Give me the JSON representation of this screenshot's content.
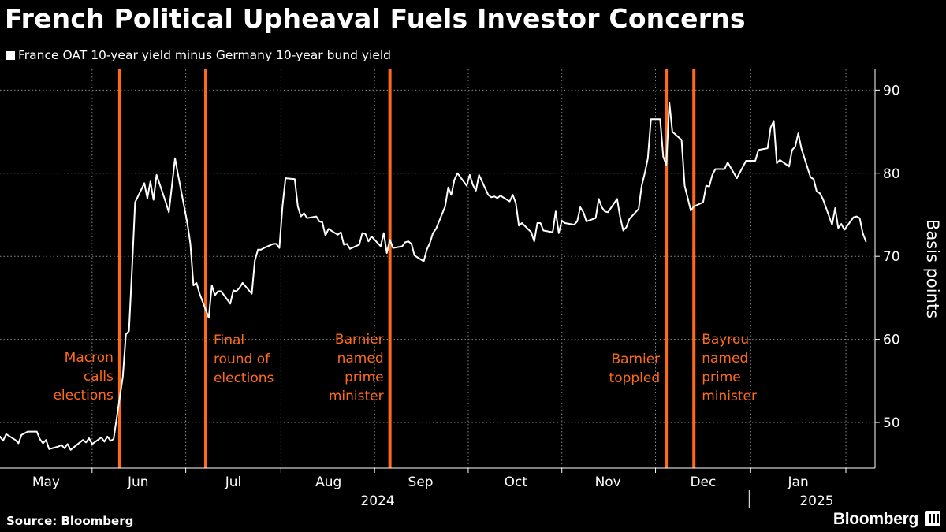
{
  "chart_data": {
    "type": "line",
    "title": "French Political Upheaval Fuels Investor Concerns",
    "series": [
      {
        "name": "France OAT 10-year yield minus Germany 10-year bund yield",
        "color": "#ffffff",
        "points": [
          [
            "2024-05-01",
            48.3
          ],
          [
            "2024-05-02",
            47.8
          ],
          [
            "2024-05-03",
            48.6
          ],
          [
            "2024-05-06",
            47.9
          ],
          [
            "2024-05-07",
            47.5
          ],
          [
            "2024-05-08",
            48.5
          ],
          [
            "2024-05-09",
            48.7
          ],
          [
            "2024-05-10",
            48.9
          ],
          [
            "2024-05-13",
            48.9
          ],
          [
            "2024-05-14",
            48.0
          ],
          [
            "2024-05-15",
            47.5
          ],
          [
            "2024-05-16",
            47.9
          ],
          [
            "2024-05-17",
            46.8
          ],
          [
            "2024-05-20",
            47.1
          ],
          [
            "2024-05-21",
            47.3
          ],
          [
            "2024-05-22",
            46.9
          ],
          [
            "2024-05-23",
            47.4
          ],
          [
            "2024-05-24",
            46.7
          ],
          [
            "2024-05-27",
            47.6
          ],
          [
            "2024-05-28",
            47.9
          ],
          [
            "2024-05-29",
            47.6
          ],
          [
            "2024-05-30",
            48.1
          ],
          [
            "2024-05-31",
            47.4
          ],
          [
            "2024-06-03",
            48.2
          ],
          [
            "2024-06-04",
            47.7
          ],
          [
            "2024-06-05",
            48.3
          ],
          [
            "2024-06-06",
            47.8
          ],
          [
            "2024-06-07",
            48.0
          ],
          [
            "2024-06-10",
            55.5
          ],
          [
            "2024-06-11",
            60.6
          ],
          [
            "2024-06-12",
            61.0
          ],
          [
            "2024-06-13",
            68.5
          ],
          [
            "2024-06-14",
            76.5
          ],
          [
            "2024-06-17",
            78.8
          ],
          [
            "2024-06-18",
            77.0
          ],
          [
            "2024-06-19",
            79.0
          ],
          [
            "2024-06-20",
            76.8
          ],
          [
            "2024-06-21",
            79.8
          ],
          [
            "2024-06-24",
            76.5
          ],
          [
            "2024-06-25",
            75.3
          ],
          [
            "2024-06-26",
            78.5
          ],
          [
            "2024-06-27",
            81.8
          ],
          [
            "2024-06-28",
            79.8
          ],
          [
            "2024-07-01",
            74.0
          ],
          [
            "2024-07-02",
            71.5
          ],
          [
            "2024-07-03",
            66.5
          ],
          [
            "2024-07-04",
            66.8
          ],
          [
            "2024-07-05",
            65.5
          ],
          [
            "2024-07-08",
            62.6
          ],
          [
            "2024-07-09",
            66.5
          ],
          [
            "2024-07-10",
            65.3
          ],
          [
            "2024-07-11",
            65.8
          ],
          [
            "2024-07-12",
            65.8
          ],
          [
            "2024-07-15",
            64.3
          ],
          [
            "2024-07-16",
            65.9
          ],
          [
            "2024-07-17",
            65.8
          ],
          [
            "2024-07-18",
            66.2
          ],
          [
            "2024-07-19",
            66.8
          ],
          [
            "2024-07-22",
            65.5
          ],
          [
            "2024-07-23",
            69.5
          ],
          [
            "2024-07-24",
            70.8
          ],
          [
            "2024-07-25",
            70.8
          ],
          [
            "2024-07-26",
            71.0
          ],
          [
            "2024-07-29",
            71.5
          ],
          [
            "2024-07-30",
            71.5
          ],
          [
            "2024-07-31",
            71.0
          ],
          [
            "2024-08-01",
            76.0
          ],
          [
            "2024-08-02",
            79.4
          ],
          [
            "2024-08-05",
            79.3
          ],
          [
            "2024-08-06",
            76.0
          ],
          [
            "2024-08-07",
            74.8
          ],
          [
            "2024-08-08",
            75.2
          ],
          [
            "2024-08-09",
            74.6
          ],
          [
            "2024-08-12",
            74.8
          ],
          [
            "2024-08-13",
            74.2
          ],
          [
            "2024-08-14",
            74.1
          ],
          [
            "2024-08-15",
            72.5
          ],
          [
            "2024-08-16",
            73.3
          ],
          [
            "2024-08-19",
            72.6
          ],
          [
            "2024-08-20",
            72.9
          ],
          [
            "2024-08-21",
            71.4
          ],
          [
            "2024-08-22",
            71.5
          ],
          [
            "2024-08-23",
            70.9
          ],
          [
            "2024-08-26",
            71.4
          ],
          [
            "2024-08-27",
            72.8
          ],
          [
            "2024-08-28",
            72.7
          ],
          [
            "2024-08-29",
            71.8
          ],
          [
            "2024-08-30",
            72.4
          ],
          [
            "2024-09-02",
            71.2
          ],
          [
            "2024-09-03",
            72.8
          ],
          [
            "2024-09-04",
            70.4
          ],
          [
            "2024-09-05",
            72.0
          ],
          [
            "2024-09-06",
            71.0
          ],
          [
            "2024-09-09",
            71.2
          ],
          [
            "2024-09-10",
            71.7
          ],
          [
            "2024-09-11",
            71.8
          ],
          [
            "2024-09-12",
            71.5
          ],
          [
            "2024-09-13",
            70.1
          ],
          [
            "2024-09-16",
            69.4
          ],
          [
            "2024-09-17",
            70.8
          ],
          [
            "2024-09-18",
            71.6
          ],
          [
            "2024-09-19",
            72.8
          ],
          [
            "2024-09-20",
            73.3
          ],
          [
            "2024-09-23",
            76.0
          ],
          [
            "2024-09-24",
            78.3
          ],
          [
            "2024-09-25",
            77.4
          ],
          [
            "2024-09-26",
            79.2
          ],
          [
            "2024-09-27",
            80.0
          ],
          [
            "2024-09-30",
            78.5
          ],
          [
            "2024-10-01",
            79.8
          ],
          [
            "2024-10-02",
            78.6
          ],
          [
            "2024-10-03",
            77.9
          ],
          [
            "2024-10-04",
            79.8
          ],
          [
            "2024-10-07",
            77.4
          ],
          [
            "2024-10-08",
            77.1
          ],
          [
            "2024-10-09",
            77.2
          ],
          [
            "2024-10-10",
            77.0
          ],
          [
            "2024-10-11",
            77.3
          ],
          [
            "2024-10-14",
            76.6
          ],
          [
            "2024-10-15",
            77.4
          ],
          [
            "2024-10-16",
            76.4
          ],
          [
            "2024-10-17",
            73.7
          ],
          [
            "2024-10-18",
            74.0
          ],
          [
            "2024-10-21",
            72.9
          ],
          [
            "2024-10-22",
            71.8
          ],
          [
            "2024-10-23",
            74.0
          ],
          [
            "2024-10-24",
            74.0
          ],
          [
            "2024-10-25",
            73.1
          ],
          [
            "2024-10-28",
            72.9
          ],
          [
            "2024-10-29",
            75.4
          ],
          [
            "2024-10-30",
            72.8
          ],
          [
            "2024-10-31",
            74.3
          ],
          [
            "2024-11-01",
            74.0
          ],
          [
            "2024-11-04",
            73.8
          ],
          [
            "2024-11-05",
            74.2
          ],
          [
            "2024-11-06",
            75.9
          ],
          [
            "2024-11-07",
            75.3
          ],
          [
            "2024-11-08",
            74.2
          ],
          [
            "2024-11-11",
            74.6
          ],
          [
            "2024-11-12",
            76.9
          ],
          [
            "2024-11-13",
            75.9
          ],
          [
            "2024-11-14",
            75.4
          ],
          [
            "2024-11-15",
            75.3
          ],
          [
            "2024-11-18",
            76.9
          ],
          [
            "2024-11-19",
            74.7
          ],
          [
            "2024-11-20",
            73.1
          ],
          [
            "2024-11-21",
            73.5
          ],
          [
            "2024-11-22",
            74.5
          ],
          [
            "2024-11-25",
            75.7
          ],
          [
            "2024-11-26",
            78.5
          ],
          [
            "2024-11-27",
            80.0
          ],
          [
            "2024-11-28",
            81.8
          ],
          [
            "2024-11-29",
            86.5
          ],
          [
            "2024-12-02",
            86.5
          ],
          [
            "2024-12-03",
            82.0
          ],
          [
            "2024-12-04",
            81.0
          ],
          [
            "2024-12-05",
            88.5
          ],
          [
            "2024-12-06",
            85.0
          ],
          [
            "2024-12-09",
            84.0
          ],
          [
            "2024-12-10",
            78.5
          ],
          [
            "2024-12-11",
            77.0
          ],
          [
            "2024-12-12",
            75.5
          ],
          [
            "2024-12-13",
            76.0
          ],
          [
            "2024-12-16",
            76.5
          ],
          [
            "2024-12-17",
            78.5
          ],
          [
            "2024-12-18",
            78.4
          ],
          [
            "2024-12-19",
            79.8
          ],
          [
            "2024-12-20",
            80.5
          ],
          [
            "2024-12-23",
            80.5
          ],
          [
            "2024-12-24",
            81.3
          ],
          [
            "2024-12-27",
            79.4
          ],
          [
            "2024-12-30",
            81.5
          ],
          [
            "2024-12-31",
            81.5
          ],
          [
            "2025-01-02",
            81.5
          ],
          [
            "2025-01-03",
            82.8
          ],
          [
            "2025-01-06",
            83.0
          ],
          [
            "2025-01-07",
            85.5
          ],
          [
            "2025-01-08",
            86.3
          ],
          [
            "2025-01-09",
            81.2
          ],
          [
            "2025-01-10",
            81.6
          ],
          [
            "2025-01-13",
            80.8
          ],
          [
            "2025-01-14",
            82.8
          ],
          [
            "2025-01-15",
            83.2
          ],
          [
            "2025-01-16",
            84.8
          ],
          [
            "2025-01-17",
            83.0
          ],
          [
            "2025-01-20",
            79.5
          ],
          [
            "2025-01-21",
            79.3
          ],
          [
            "2025-01-22",
            77.8
          ],
          [
            "2025-01-23",
            77.6
          ],
          [
            "2025-01-24",
            76.9
          ],
          [
            "2025-01-27",
            73.8
          ],
          [
            "2025-01-28",
            75.8
          ],
          [
            "2025-01-29",
            73.4
          ],
          [
            "2025-01-30",
            73.9
          ],
          [
            "2025-01-31",
            73.2
          ],
          [
            "2025-02-03",
            74.7
          ],
          [
            "2025-02-04",
            74.8
          ],
          [
            "2025-02-05",
            74.6
          ],
          [
            "2025-02-06",
            72.8
          ],
          [
            "2025-02-07",
            71.8
          ]
        ]
      }
    ],
    "ylabel": "Basis points",
    "y_ticks": [
      50,
      60,
      70,
      80,
      90
    ],
    "ylim": [
      44.5,
      92.5
    ],
    "xlim": [
      "2024-05-01",
      "2025-02-10"
    ],
    "x_ticks": [
      {
        "label": "May",
        "date": "2024-05-16"
      },
      {
        "label": "Jun",
        "date": "2024-06-15"
      },
      {
        "label": "Jul",
        "date": "2024-07-16"
      },
      {
        "label": "Aug",
        "date": "2024-08-16"
      },
      {
        "label": "Sep",
        "date": "2024-09-15"
      },
      {
        "label": "Oct",
        "date": "2024-10-16"
      },
      {
        "label": "Nov",
        "date": "2024-11-15"
      },
      {
        "label": "Dec",
        "date": "2024-12-16"
      },
      {
        "label": "Jan",
        "date": "2025-01-16"
      }
    ],
    "year_labels": [
      {
        "label": "2024",
        "date": "2024-09-01"
      },
      {
        "label": "2025",
        "date": "2025-01-22"
      }
    ],
    "year_divider": "2024-12-31",
    "events": [
      {
        "date": "2024-06-09",
        "label": [
          "Macron",
          "calls",
          "elections"
        ],
        "align": "right"
      },
      {
        "date": "2024-07-07",
        "label": [
          "Final",
          "round of",
          "elections"
        ],
        "align": "left"
      },
      {
        "date": "2024-09-05",
        "label": [
          "Barnier",
          "named",
          "prime",
          "minister"
        ],
        "align": "right"
      },
      {
        "date": "2024-12-04",
        "label": [
          "Barnier",
          "toppled"
        ],
        "align": "right"
      },
      {
        "date": "2024-12-13",
        "label": [
          "Bayrou",
          "named",
          "prime",
          "minister"
        ],
        "align": "left"
      }
    ],
    "line_color": "#ffffff",
    "event_color": "#ff6a1a",
    "grid": true,
    "grid_style": "dotted",
    "legend_position": "top-left"
  },
  "legend_label": "France OAT 10-year yield minus Germany 10-year bund yield",
  "footer": {
    "source": "Source: Bloomberg",
    "brand": "Bloomberg"
  }
}
